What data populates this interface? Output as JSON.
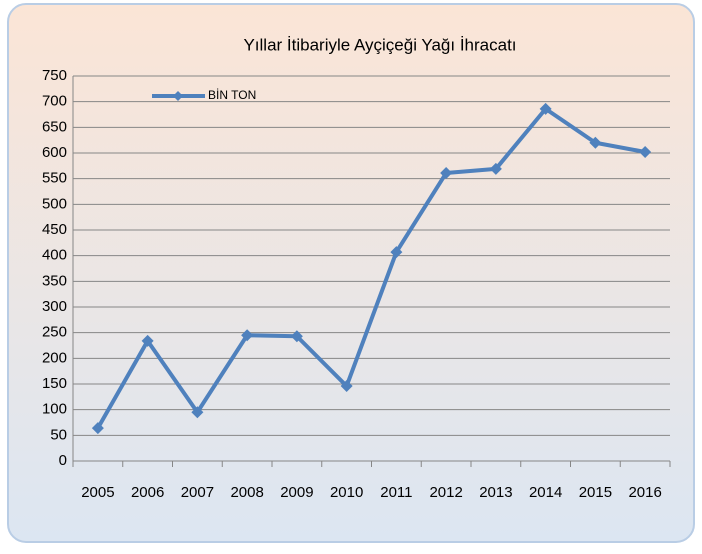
{
  "chart_data": {
    "type": "line",
    "title": "Yıllar İtibariyle Ayçiçeği Yağı İhracatı",
    "categories": [
      "2005",
      "2006",
      "2007",
      "2008",
      "2009",
      "2010",
      "2011",
      "2012",
      "2013",
      "2014",
      "2015",
      "2016"
    ],
    "series": [
      {
        "name": "BİN TON",
        "color": "#4f81bd",
        "values": [
          64,
          234,
          95,
          245,
          243,
          146,
          407,
          561,
          569,
          686,
          620,
          602
        ]
      }
    ],
    "ylim": [
      0,
      750
    ],
    "yticks": [
      0,
      50,
      100,
      150,
      200,
      250,
      300,
      350,
      400,
      450,
      500,
      550,
      600,
      650,
      700,
      750
    ],
    "grid": true,
    "legend": "top-left"
  }
}
